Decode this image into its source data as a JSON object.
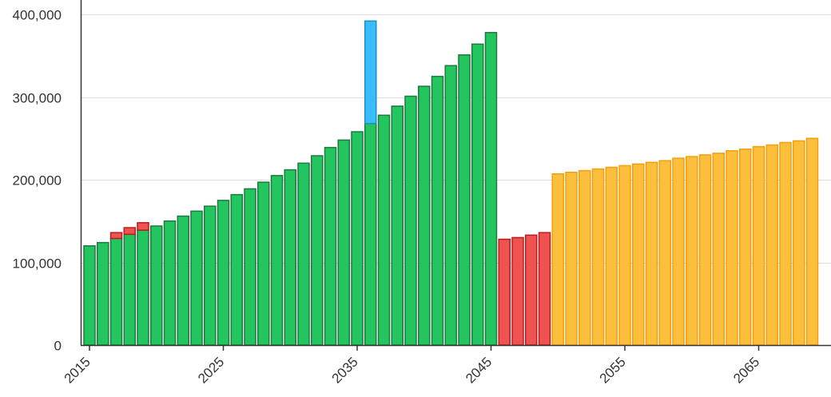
{
  "chart_data": {
    "type": "bar",
    "title": "",
    "xlabel": "",
    "ylabel": "",
    "ylim": [
      0,
      410000
    ],
    "y_ticks": [
      0,
      100000,
      200000,
      300000,
      400000
    ],
    "y_tick_labels": [
      "0",
      "100,000",
      "200,000",
      "300,000",
      "400,000"
    ],
    "x_ticks": [
      2015,
      2025,
      2035,
      2045,
      2055,
      2065
    ],
    "x_tick_labels": [
      "2015",
      "2025",
      "2035",
      "2045",
      "2055",
      "2065"
    ],
    "grid": true,
    "colors": {
      "green": "#22c55e",
      "green_edge": "#1e7a3e",
      "red": "#f05252",
      "red_edge": "#b91c1c",
      "blue": "#38bdf8",
      "blue_edge": "#1d8fc7",
      "orange": "#fbbf3c",
      "orange_edge": "#f59e0b"
    },
    "bars": [
      {
        "x": 2015,
        "total": 120000,
        "segments": [
          {
            "color": "green",
            "value": 120000
          }
        ]
      },
      {
        "x": 2016,
        "total": 124000,
        "segments": [
          {
            "color": "green",
            "value": 124000
          }
        ]
      },
      {
        "x": 2017,
        "total": 136000,
        "segments": [
          {
            "color": "green",
            "value": 129000
          },
          {
            "color": "red",
            "value": 7000
          }
        ]
      },
      {
        "x": 2018,
        "total": 142000,
        "segments": [
          {
            "color": "green",
            "value": 134000
          },
          {
            "color": "red",
            "value": 8000
          }
        ]
      },
      {
        "x": 2019,
        "total": 148000,
        "segments": [
          {
            "color": "green",
            "value": 139000
          },
          {
            "color": "red",
            "value": 9000
          }
        ]
      },
      {
        "x": 2020,
        "total": 144000,
        "segments": [
          {
            "color": "green",
            "value": 144000
          }
        ]
      },
      {
        "x": 2021,
        "total": 150000,
        "segments": [
          {
            "color": "green",
            "value": 150000
          }
        ]
      },
      {
        "x": 2022,
        "total": 156000,
        "segments": [
          {
            "color": "green",
            "value": 156000
          }
        ]
      },
      {
        "x": 2023,
        "total": 162000,
        "segments": [
          {
            "color": "green",
            "value": 162000
          }
        ]
      },
      {
        "x": 2024,
        "total": 168000,
        "segments": [
          {
            "color": "green",
            "value": 168000
          }
        ]
      },
      {
        "x": 2025,
        "total": 175000,
        "segments": [
          {
            "color": "green",
            "value": 175000
          }
        ]
      },
      {
        "x": 2026,
        "total": 182000,
        "segments": [
          {
            "color": "green",
            "value": 182000
          }
        ]
      },
      {
        "x": 2027,
        "total": 189000,
        "segments": [
          {
            "color": "green",
            "value": 189000
          }
        ]
      },
      {
        "x": 2028,
        "total": 197000,
        "segments": [
          {
            "color": "green",
            "value": 197000
          }
        ]
      },
      {
        "x": 2029,
        "total": 205000,
        "segments": [
          {
            "color": "green",
            "value": 205000
          }
        ]
      },
      {
        "x": 2030,
        "total": 212000,
        "segments": [
          {
            "color": "green",
            "value": 212000
          }
        ]
      },
      {
        "x": 2031,
        "total": 220000,
        "segments": [
          {
            "color": "green",
            "value": 220000
          }
        ]
      },
      {
        "x": 2032,
        "total": 229000,
        "segments": [
          {
            "color": "green",
            "value": 229000
          }
        ]
      },
      {
        "x": 2033,
        "total": 239000,
        "segments": [
          {
            "color": "green",
            "value": 239000
          }
        ]
      },
      {
        "x": 2034,
        "total": 248000,
        "segments": [
          {
            "color": "green",
            "value": 248000
          }
        ]
      },
      {
        "x": 2035,
        "total": 258000,
        "segments": [
          {
            "color": "green",
            "value": 258000
          }
        ]
      },
      {
        "x": 2036,
        "total": 392000,
        "segments": [
          {
            "color": "green",
            "value": 268000
          },
          {
            "color": "blue",
            "value": 124000
          }
        ]
      },
      {
        "x": 2037,
        "total": 278000,
        "segments": [
          {
            "color": "green",
            "value": 278000
          }
        ]
      },
      {
        "x": 2038,
        "total": 289000,
        "segments": [
          {
            "color": "green",
            "value": 289000
          }
        ]
      },
      {
        "x": 2039,
        "total": 301000,
        "segments": [
          {
            "color": "green",
            "value": 301000
          }
        ]
      },
      {
        "x": 2040,
        "total": 313000,
        "segments": [
          {
            "color": "green",
            "value": 313000
          }
        ]
      },
      {
        "x": 2041,
        "total": 325000,
        "segments": [
          {
            "color": "green",
            "value": 325000
          }
        ]
      },
      {
        "x": 2042,
        "total": 338000,
        "segments": [
          {
            "color": "green",
            "value": 338000
          }
        ]
      },
      {
        "x": 2043,
        "total": 351000,
        "segments": [
          {
            "color": "green",
            "value": 351000
          }
        ]
      },
      {
        "x": 2044,
        "total": 364000,
        "segments": [
          {
            "color": "green",
            "value": 364000
          }
        ]
      },
      {
        "x": 2045,
        "total": 378000,
        "segments": [
          {
            "color": "green",
            "value": 378000
          }
        ]
      },
      {
        "x": 2046,
        "total": 128000,
        "segments": [
          {
            "color": "red",
            "value": 128000
          }
        ]
      },
      {
        "x": 2047,
        "total": 130000,
        "segments": [
          {
            "color": "red",
            "value": 130000
          }
        ]
      },
      {
        "x": 2048,
        "total": 133000,
        "segments": [
          {
            "color": "red",
            "value": 133000
          }
        ]
      },
      {
        "x": 2049,
        "total": 136000,
        "segments": [
          {
            "color": "red",
            "value": 136000
          }
        ]
      },
      {
        "x": 2050,
        "total": 207000,
        "segments": [
          {
            "color": "orange",
            "value": 207000
          }
        ]
      },
      {
        "x": 2051,
        "total": 209000,
        "segments": [
          {
            "color": "orange",
            "value": 209000
          }
        ]
      },
      {
        "x": 2052,
        "total": 211000,
        "segments": [
          {
            "color": "orange",
            "value": 211000
          }
        ]
      },
      {
        "x": 2053,
        "total": 213000,
        "segments": [
          {
            "color": "orange",
            "value": 213000
          }
        ]
      },
      {
        "x": 2054,
        "total": 215000,
        "segments": [
          {
            "color": "orange",
            "value": 215000
          }
        ]
      },
      {
        "x": 2055,
        "total": 217000,
        "segments": [
          {
            "color": "orange",
            "value": 217000
          }
        ]
      },
      {
        "x": 2056,
        "total": 219000,
        "segments": [
          {
            "color": "orange",
            "value": 219000
          }
        ]
      },
      {
        "x": 2057,
        "total": 221000,
        "segments": [
          {
            "color": "orange",
            "value": 221000
          }
        ]
      },
      {
        "x": 2058,
        "total": 223000,
        "segments": [
          {
            "color": "orange",
            "value": 223000
          }
        ]
      },
      {
        "x": 2059,
        "total": 226000,
        "segments": [
          {
            "color": "orange",
            "value": 226000
          }
        ]
      },
      {
        "x": 2060,
        "total": 228000,
        "segments": [
          {
            "color": "orange",
            "value": 228000
          }
        ]
      },
      {
        "x": 2061,
        "total": 230000,
        "segments": [
          {
            "color": "orange",
            "value": 230000
          }
        ]
      },
      {
        "x": 2062,
        "total": 232000,
        "segments": [
          {
            "color": "orange",
            "value": 232000
          }
        ]
      },
      {
        "x": 2063,
        "total": 235000,
        "segments": [
          {
            "color": "orange",
            "value": 235000
          }
        ]
      },
      {
        "x": 2064,
        "total": 237000,
        "segments": [
          {
            "color": "orange",
            "value": 237000
          }
        ]
      },
      {
        "x": 2065,
        "total": 240000,
        "segments": [
          {
            "color": "orange",
            "value": 240000
          }
        ]
      },
      {
        "x": 2066,
        "total": 242000,
        "segments": [
          {
            "color": "orange",
            "value": 242000
          }
        ]
      },
      {
        "x": 2067,
        "total": 245000,
        "segments": [
          {
            "color": "orange",
            "value": 245000
          }
        ]
      },
      {
        "x": 2068,
        "total": 247000,
        "segments": [
          {
            "color": "orange",
            "value": 247000
          }
        ]
      },
      {
        "x": 2069,
        "total": 250000,
        "segments": [
          {
            "color": "orange",
            "value": 250000
          }
        ]
      }
    ]
  }
}
